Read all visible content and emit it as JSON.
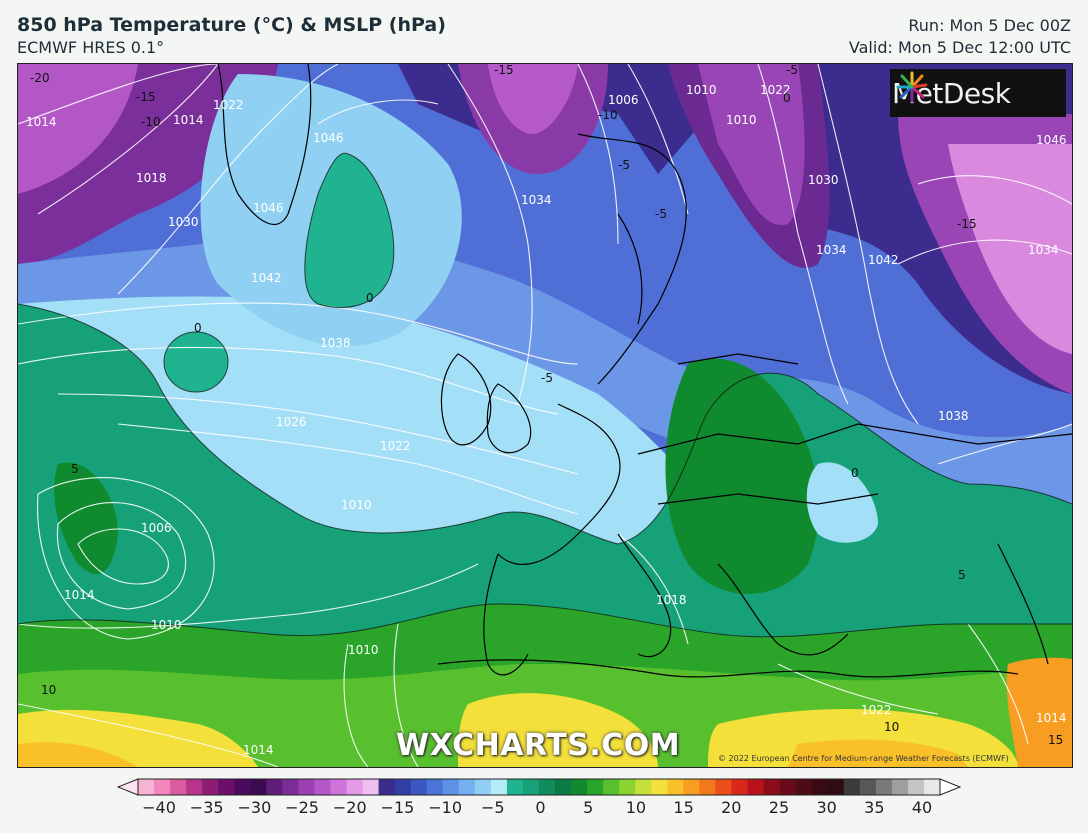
{
  "header": {
    "title": "850 hPa Temperature (°C) & MSLP (hPa)",
    "subtitle": "ECMWF HRES 0.1°",
    "run": "Run: Mon 5 Dec 00Z",
    "valid": "Valid: Mon 5 Dec 12:00 UTC"
  },
  "logo": {
    "brand": "MetDesk",
    "icon": "metdesk-burst-icon"
  },
  "watermark": "WXCHARTS.COM",
  "copyright": "© 2022 European Centre for Medium-range Weather Forecasts (ECMWF)",
  "isobar_labels": [
    "1014",
    "1014",
    "1022",
    "1018",
    "1030",
    "1046",
    "1046",
    "1042",
    "1038",
    "1026",
    "1022",
    "1010",
    "1006",
    "1010",
    "1010",
    "1014",
    "1014",
    "1010",
    "1006",
    "1034",
    "1034",
    "1042",
    "1038",
    "1022",
    "1018",
    "1014",
    "1034",
    "1030",
    "1022",
    "1010",
    "1046"
  ],
  "temp_labels": [
    "-20",
    "-15",
    "-10",
    "0",
    "0",
    "-5",
    "-5",
    "-10",
    "-15",
    "5",
    "10",
    "-5",
    "0",
    "5",
    "10",
    "15",
    "-15",
    "-5",
    "0"
  ],
  "colorbar": {
    "tick_labels": [
      "−40",
      "−35",
      "−30",
      "−25",
      "−20",
      "−15",
      "−10",
      "−5",
      "0",
      "5",
      "10",
      "15",
      "20",
      "25",
      "30",
      "35",
      "40"
    ],
    "colors": [
      "#f7b3d3",
      "#f187bd",
      "#d95ca0",
      "#b8348a",
      "#8d1d72",
      "#6b0f6b",
      "#4a0a5e",
      "#3a0b4e",
      "#5e1e7a",
      "#7a2d96",
      "#9b3fb2",
      "#b657c8",
      "#cf74da",
      "#e39ae6",
      "#efbff0",
      "#3a2c8a",
      "#2f3fa6",
      "#3a57c4",
      "#4a74d8",
      "#5d92e6",
      "#75b0f0",
      "#92cdf5",
      "#b4ebf7",
      "#20b390",
      "#17a178",
      "#108c5e",
      "#0c7a45",
      "#0f8a2e",
      "#2ba529",
      "#58bf2e",
      "#8ad332",
      "#c6e03a",
      "#f3e03a",
      "#f9c02a",
      "#f79e22",
      "#f2781e",
      "#ea4e1a",
      "#d8281a",
      "#b8121a",
      "#8c0d1a",
      "#6a0b1a",
      "#4e0a15",
      "#3a0a14",
      "#2e0d12",
      "#3b3b3b",
      "#575757",
      "#7a7a7a",
      "#9e9e9e",
      "#c4c4c4",
      "#e8e8e8"
    ]
  }
}
